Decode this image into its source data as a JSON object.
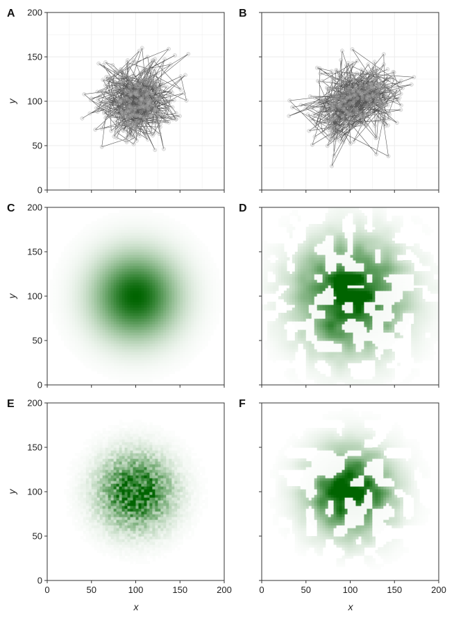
{
  "colors": {
    "background": "#ffffff",
    "axis": "#333333",
    "grid": "#ebebeb",
    "trajectory": "#111111",
    "density_low": "#ffffff",
    "density_high": "#006400"
  },
  "chart_data": [
    {
      "panel": "A",
      "type": "line",
      "description_style": "trajectory",
      "xlim": [
        0,
        200
      ],
      "ylim": [
        0,
        200
      ],
      "xticks": [
        0,
        50,
        100,
        150,
        200
      ],
      "yticks": [
        0,
        50,
        100,
        150,
        200
      ],
      "xlabel": "",
      "ylabel": "y",
      "grid": true,
      "show_x_tick_labels": false,
      "show_y_tick_labels": true,
      "center": [
        100,
        100
      ],
      "spread": 22,
      "steps": 420
    },
    {
      "panel": "B",
      "type": "line",
      "description_style": "trajectory",
      "xlim": [
        0,
        200
      ],
      "ylim": [
        0,
        200
      ],
      "xticks": [
        0,
        50,
        100,
        150,
        200
      ],
      "yticks": [
        0,
        50,
        100,
        150,
        200
      ],
      "xlabel": "",
      "ylabel": "",
      "grid": true,
      "show_x_tick_labels": false,
      "show_y_tick_labels": false,
      "clusters": [
        [
          80,
          80
        ],
        [
          125,
          100
        ],
        [
          130,
          118
        ],
        [
          90,
          115
        ],
        [
          100,
          100
        ]
      ],
      "steps": 420
    },
    {
      "panel": "C",
      "type": "heatmap",
      "description_style": "smooth-density",
      "xlim": [
        0,
        200
      ],
      "ylim": [
        0,
        200
      ],
      "xticks": [
        0,
        50,
        100,
        150,
        200
      ],
      "yticks": [
        0,
        50,
        100,
        150,
        200
      ],
      "xlabel": "",
      "ylabel": "y",
      "grid": false,
      "show_x_tick_labels": false,
      "show_y_tick_labels": true,
      "center": [
        100,
        100
      ],
      "sigma": 32
    },
    {
      "panel": "D",
      "type": "heatmap",
      "description_style": "patchy-density",
      "xlim": [
        0,
        200
      ],
      "ylim": [
        0,
        200
      ],
      "xticks": [
        0,
        50,
        100,
        150,
        200
      ],
      "yticks": [
        0,
        50,
        100,
        150,
        200
      ],
      "xlabel": "",
      "ylabel": "",
      "grid": false,
      "show_x_tick_labels": false,
      "show_y_tick_labels": false,
      "center": [
        100,
        100
      ],
      "sigma": 38
    },
    {
      "panel": "E",
      "type": "heatmap",
      "description_style": "noisy-density",
      "xlim": [
        0,
        200
      ],
      "ylim": [
        0,
        200
      ],
      "xticks": [
        0,
        50,
        100,
        150,
        200
      ],
      "yticks": [
        0,
        50,
        100,
        150,
        200
      ],
      "xlabel": "x",
      "ylabel": "y",
      "grid": false,
      "show_x_tick_labels": true,
      "show_y_tick_labels": true,
      "center": [
        100,
        100
      ],
      "sigma": 26
    },
    {
      "panel": "F",
      "type": "heatmap",
      "description_style": "patchy-density",
      "xlim": [
        0,
        200
      ],
      "ylim": [
        0,
        200
      ],
      "xticks": [
        0,
        50,
        100,
        150,
        200
      ],
      "yticks": [
        0,
        50,
        100,
        150,
        200
      ],
      "xlabel": "x",
      "ylabel": "",
      "grid": false,
      "show_x_tick_labels": true,
      "show_y_tick_labels": false,
      "center": [
        100,
        100
      ],
      "sigma": 30
    }
  ]
}
